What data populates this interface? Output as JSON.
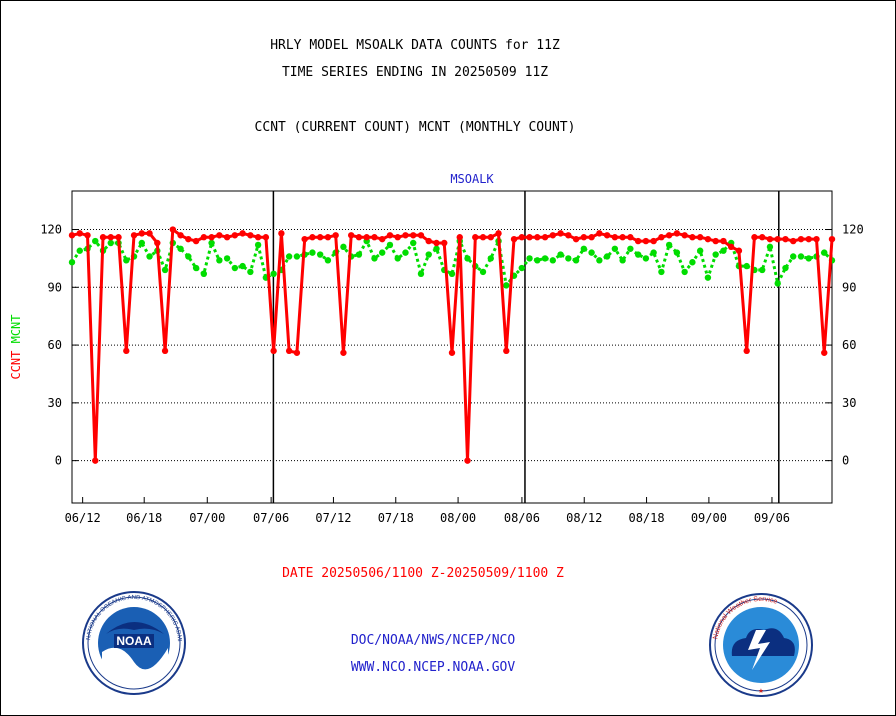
{
  "title_line1": "HRLY MODEL MSOALK DATA COUNTS for 11Z",
  "title_line2": "TIME SERIES ENDING IN 20250509 11Z",
  "title_line3": "CCNT (CURRENT COUNT) MCNT (MONTHLY COUNT)",
  "date_range": "DATE 20250506/1100 Z-20250509/1100 Z",
  "footer_line1": "DOC/NOAA/NWS/NCEP/NCO",
  "footer_line2": "WWW.NCO.NCEP.NOAA.GOV",
  "colors": {
    "ccnt": "#ff0000",
    "mcnt": "#00dd00",
    "link": "#2222cc",
    "plot_title": "#2222cc"
  },
  "logos": {
    "left": "NOAA",
    "right": "National Weather Service"
  },
  "chart_data": {
    "type": "line",
    "title": "MSOALK",
    "ylabel_left": [
      "CCNT",
      "MCNT"
    ],
    "ylim": [
      -22,
      140
    ],
    "yticks": [
      0,
      30,
      60,
      90,
      120
    ],
    "xlim": [
      0,
      100
    ],
    "xtick_labels": [
      "06/12",
      "06/18",
      "07/00",
      "07/06",
      "07/12",
      "07/18",
      "08/00",
      "08/06",
      "08/12",
      "08/18",
      "09/00",
      "09/06"
    ],
    "xtick_positions": [
      1.4,
      9.5,
      17.8,
      26.2,
      34.4,
      42.6,
      50.8,
      59.2,
      67.4,
      75.6,
      83.8,
      92.1
    ],
    "day_boundaries": [
      26.5,
      59.6,
      93.0
    ],
    "series": [
      {
        "name": "CCNT",
        "color": "#ff0000",
        "values": [
          117,
          118,
          117,
          0,
          116,
          116,
          116,
          57,
          117,
          118,
          118,
          113,
          57,
          120,
          117,
          115,
          114,
          116,
          116,
          117,
          116,
          117,
          118,
          117,
          116,
          116,
          57,
          118,
          57,
          56,
          115,
          116,
          116,
          116,
          117,
          56,
          117,
          116,
          116,
          116,
          115,
          117,
          116,
          117,
          117,
          117,
          114,
          113,
          113,
          56,
          116,
          0,
          116,
          116,
          116,
          118,
          57,
          115,
          116,
          116,
          116,
          116,
          117,
          118,
          117,
          115,
          116,
          116,
          118,
          117,
          116,
          116,
          116,
          114,
          114,
          114,
          116,
          117,
          118,
          117,
          116,
          116,
          115,
          114,
          114,
          111,
          109,
          57,
          116,
          116,
          115,
          115,
          115,
          114,
          115,
          115,
          115,
          56,
          115
        ]
      },
      {
        "name": "MCNT",
        "color": "#00dd00",
        "values": [
          103,
          109,
          110,
          114,
          109,
          113,
          113,
          104,
          106,
          113,
          106,
          109,
          99,
          113,
          110,
          106,
          100,
          97,
          113,
          104,
          105,
          100,
          101,
          98,
          112,
          95,
          97,
          99,
          106,
          106,
          107,
          108,
          107,
          104,
          108,
          111,
          106,
          107,
          114,
          105,
          108,
          112,
          105,
          108,
          113,
          97,
          107,
          110,
          99,
          97,
          114,
          105,
          101,
          98,
          105,
          114,
          91,
          96,
          100,
          105,
          104,
          105,
          104,
          107,
          105,
          104,
          110,
          108,
          104,
          106,
          110,
          104,
          110,
          107,
          105,
          108,
          98,
          112,
          108,
          98,
          103,
          109,
          95,
          107,
          109,
          113,
          101,
          101,
          99,
          99,
          111,
          92,
          100,
          106,
          106,
          105,
          106,
          108,
          104
        ]
      }
    ]
  }
}
